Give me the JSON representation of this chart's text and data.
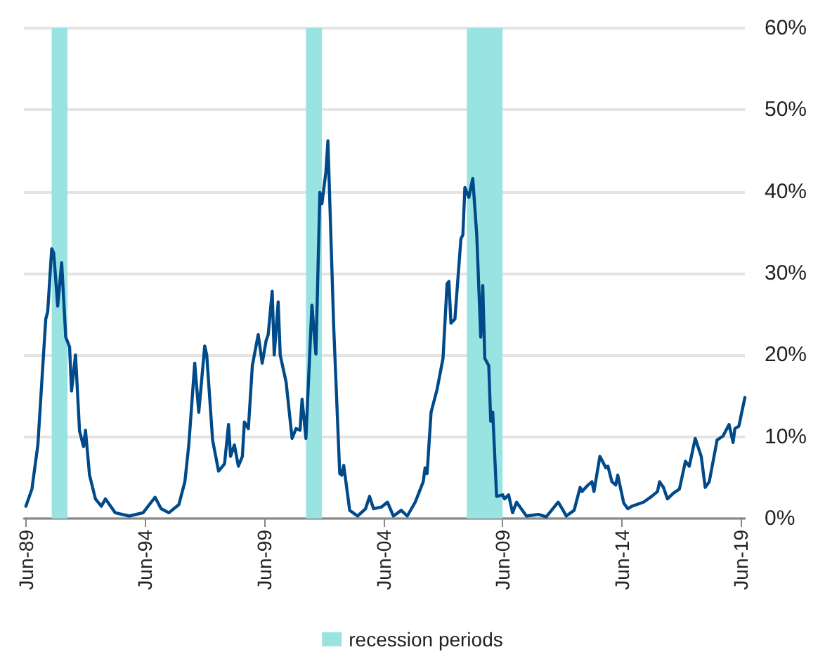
{
  "chart_data": {
    "type": "line",
    "x": [
      "1989-06",
      "1989-09",
      "1989-12",
      "1990-04",
      "1990-05",
      "1990-07",
      "1990-08",
      "1990-10",
      "1990-12",
      "1991-02",
      "1991-04",
      "1991-05",
      "1991-07",
      "1991-09",
      "1991-11",
      "1991-12",
      "1992-02",
      "1992-05",
      "1992-08",
      "1992-10",
      "1993-03",
      "1993-10",
      "1994-05",
      "1994-11",
      "1995-02",
      "1995-06",
      "1995-11",
      "1996-02",
      "1996-04",
      "1996-07",
      "1996-09",
      "1996-12",
      "1997-01",
      "1997-04",
      "1997-07",
      "1997-09",
      "1997-10",
      "1997-12",
      "1998-01",
      "1998-03",
      "1998-05",
      "1998-07",
      "1998-08",
      "1998-10",
      "1998-12",
      "1999-03",
      "1999-05",
      "1999-07",
      "1999-08",
      "1999-10",
      "1999-11",
      "2000-01",
      "2000-02",
      "2000-05",
      "2000-08",
      "2000-10",
      "2000-12",
      "2001-01",
      "2001-03",
      "2001-06",
      "2001-08",
      "2001-10",
      "2001-11",
      "2002-01",
      "2002-02",
      "2002-05",
      "2002-08",
      "2002-09",
      "2002-10",
      "2003-01",
      "2003-05",
      "2003-09",
      "2003-11",
      "2004-01",
      "2004-05",
      "2004-08",
      "2004-11",
      "2005-03",
      "2005-06",
      "2005-10",
      "2006-02",
      "2006-03",
      "2006-04",
      "2006-06",
      "2006-09",
      "2006-12",
      "2007-02",
      "2007-03",
      "2007-04",
      "2007-06",
      "2007-09",
      "2007-10",
      "2007-11",
      "2008-01",
      "2008-03",
      "2008-05",
      "2008-07",
      "2008-08",
      "2008-09",
      "2008-11",
      "2008-12",
      "2009-01",
      "2009-03",
      "2009-06",
      "2009-07",
      "2009-09",
      "2009-11",
      "2010-01",
      "2010-06",
      "2010-12",
      "2011-04",
      "2011-10",
      "2011-12",
      "2012-02",
      "2012-06",
      "2012-09",
      "2012-10",
      "2013-01",
      "2013-03",
      "2013-04",
      "2013-07",
      "2013-10",
      "2013-11",
      "2014-01",
      "2014-03",
      "2014-04",
      "2014-07",
      "2014-09",
      "2014-11",
      "2015-05",
      "2015-09",
      "2015-12",
      "2016-01",
      "2016-03",
      "2016-05",
      "2016-08",
      "2016-11",
      "2017-02",
      "2017-04",
      "2017-07",
      "2017-10",
      "2017-12",
      "2018-02",
      "2018-06",
      "2018-09",
      "2018-12",
      "2019-02",
      "2019-03",
      "2019-05",
      "2019-08"
    ],
    "series": [
      {
        "color": "#004a8a",
        "values": [
          1.5,
          3.6,
          9,
          24.4,
          25.3,
          33,
          32.5,
          26,
          31.3,
          22.2,
          21,
          15.6,
          20,
          10.7,
          8.8,
          10.8,
          5.3,
          2.4,
          1.5,
          2.4,
          0.7,
          0.3,
          0.7,
          2.6,
          1.2,
          0.7,
          1.7,
          4.5,
          9,
          19,
          13,
          21.1,
          20,
          9.6,
          5.8,
          6.4,
          6.7,
          11.5,
          7.6,
          9,
          6.4,
          7.6,
          11.8,
          11,
          18.7,
          22.5,
          19,
          21.8,
          22.5,
          27.8,
          20,
          26.5,
          20,
          16.7,
          9.8,
          11,
          10.8,
          14.6,
          9.8,
          26.1,
          20.1,
          39.9,
          38.5,
          42.4,
          46.2,
          23.4,
          5.5,
          5.3,
          6.5,
          1,
          0.3,
          1.2,
          2.7,
          1.2,
          1.4,
          2,
          0.3,
          1,
          0.3,
          2,
          4.5,
          6.2,
          5.5,
          13,
          15.8,
          19.6,
          28.7,
          29,
          23.9,
          24.4,
          34.2,
          34.7,
          40.5,
          39.3,
          41.6,
          34.7,
          22.2,
          28.5,
          19.6,
          18.7,
          11.9,
          13,
          2.7,
          2.9,
          2.4,
          2.9,
          0.7,
          2,
          0.3,
          0.5,
          0.2,
          2,
          1.2,
          0.3,
          1,
          3.8,
          3.3,
          4.1,
          4.5,
          3.3,
          7.6,
          6.2,
          6.4,
          4.5,
          4.1,
          5.3,
          1.9,
          1.2,
          1.5,
          2,
          2.7,
          3.3,
          4.5,
          3.8,
          2.4,
          3.1,
          3.6,
          7,
          6.4,
          9.8,
          7.6,
          3.8,
          4.5,
          9.6,
          10.1,
          11.5,
          9.3,
          11,
          11.3,
          14.8
        ]
      }
    ],
    "xlim": [
      "1989-05",
      "2019-08"
    ],
    "xticks": [
      {
        "value": "1989-06",
        "label": "Jun-89"
      },
      {
        "value": "1994-06",
        "label": "Jun-94"
      },
      {
        "value": "1999-06",
        "label": "Jun-99"
      },
      {
        "value": "2004-06",
        "label": "Jun-04"
      },
      {
        "value": "2009-06",
        "label": "Jun-09"
      },
      {
        "value": "2014-06",
        "label": "Jun-14"
      },
      {
        "value": "2019-06",
        "label": "Jun-19"
      }
    ],
    "ylim": [
      0,
      60
    ],
    "yticks": [
      {
        "value": 0,
        "label": "0%"
      },
      {
        "value": 10,
        "label": "10%"
      },
      {
        "value": 20,
        "label": "20%"
      },
      {
        "value": 30,
        "label": "30%"
      },
      {
        "value": 40,
        "label": "40%"
      },
      {
        "value": 50,
        "label": "50%"
      },
      {
        "value": 60,
        "label": "60%"
      }
    ],
    "bands": [
      {
        "axis": "x",
        "from": "1990-07",
        "to": "1991-03",
        "label": "recession periods",
        "color": "#99e3e3"
      },
      {
        "axis": "x",
        "from": "2001-03",
        "to": "2001-11",
        "color": "#99e3e3"
      },
      {
        "axis": "x",
        "from": "2007-12",
        "to": "2009-06",
        "color": "#99e3e3"
      }
    ],
    "grid": "y",
    "legend": "bottom",
    "marker": "none",
    "line_style": "solid"
  }
}
